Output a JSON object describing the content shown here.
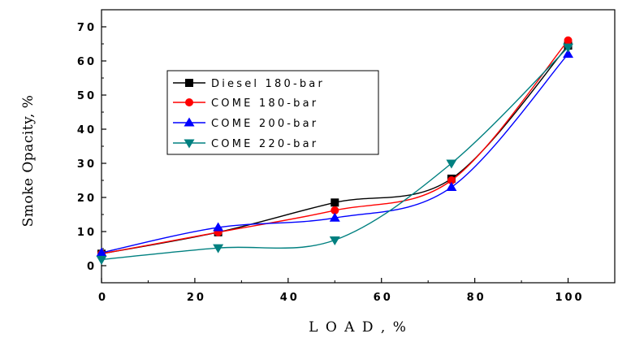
{
  "chart_data": {
    "type": "line",
    "xlabel": "L O A D , %",
    "ylabel": "Smoke Opacity, %",
    "xlim": [
      0,
      110
    ],
    "ylim": [
      -5,
      75
    ],
    "x_ticks": [
      0,
      20,
      40,
      60,
      80,
      100
    ],
    "x_tick_labels": [
      "0",
      "20",
      "40",
      "60",
      "80",
      "100"
    ],
    "y_ticks": [
      0,
      10,
      20,
      30,
      40,
      50,
      60,
      70
    ],
    "y_tick_labels": [
      "0",
      "10",
      "20",
      "30",
      "40",
      "50",
      "60",
      "70"
    ],
    "grid": false,
    "legend_position": "upper-left",
    "series": [
      {
        "name": "Diesel 180-bar",
        "color": "#000000",
        "marker": "square",
        "x": [
          0,
          25,
          50,
          75,
          100
        ],
        "y": [
          3.5,
          9.8,
          18.5,
          25.5,
          64.5
        ]
      },
      {
        "name": "COME 180-bar",
        "color": "#ff0000",
        "marker": "circle",
        "x": [
          0,
          25,
          50,
          75,
          100
        ],
        "y": [
          3.5,
          9.8,
          16.2,
          25,
          66
        ]
      },
      {
        "name": "COME 200-bar",
        "color": "#0000ff",
        "marker": "triangle-up",
        "x": [
          0,
          25,
          50,
          75,
          100
        ],
        "y": [
          3.8,
          11.2,
          14,
          23,
          62
        ]
      },
      {
        "name": "COME 220-bar",
        "color": "#008080",
        "marker": "triangle-down",
        "x": [
          0,
          25,
          50,
          75,
          100
        ],
        "y": [
          1.8,
          5.2,
          7.5,
          30,
          64
        ]
      }
    ]
  }
}
